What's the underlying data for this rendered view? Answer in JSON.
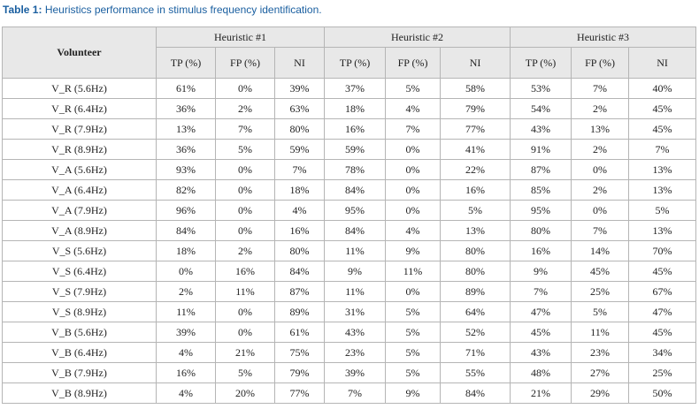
{
  "caption": {
    "label": "Table 1:",
    "text": "Heuristics performance in stimulus frequency identification."
  },
  "table": {
    "volunteer_header": "Volunteer",
    "groups": [
      "Heuristic #1",
      "Heuristic #2",
      "Heuristic #3"
    ],
    "subheaders": [
      "TP (%)",
      "FP (%)",
      "NI",
      "TP (%)",
      "FP (%)",
      "NI",
      "TP (%)",
      "FP (%)",
      "NI"
    ],
    "rows": [
      [
        "V_R (5.6Hz)",
        "61%",
        "0%",
        "39%",
        "37%",
        "5%",
        "58%",
        "53%",
        "7%",
        "40%"
      ],
      [
        "V_R (6.4Hz)",
        "36%",
        "2%",
        "63%",
        "18%",
        "4%",
        "79%",
        "54%",
        "2%",
        "45%"
      ],
      [
        "V_R (7.9Hz)",
        "13%",
        "7%",
        "80%",
        "16%",
        "7%",
        "77%",
        "43%",
        "13%",
        "45%"
      ],
      [
        "V_R (8.9Hz)",
        "36%",
        "5%",
        "59%",
        "59%",
        "0%",
        "41%",
        "91%",
        "2%",
        "7%"
      ],
      [
        "V_A (5.6Hz)",
        "93%",
        "0%",
        "7%",
        "78%",
        "0%",
        "22%",
        "87%",
        "0%",
        "13%"
      ],
      [
        "V_A (6.4Hz)",
        "82%",
        "0%",
        "18%",
        "84%",
        "0%",
        "16%",
        "85%",
        "2%",
        "13%"
      ],
      [
        "V_A (7.9Hz)",
        "96%",
        "0%",
        "4%",
        "95%",
        "0%",
        "5%",
        "95%",
        "0%",
        "5%"
      ],
      [
        "V_A (8.9Hz)",
        "84%",
        "0%",
        "16%",
        "84%",
        "4%",
        "13%",
        "80%",
        "7%",
        "13%"
      ],
      [
        "V_S (5.6Hz)",
        "18%",
        "2%",
        "80%",
        "11%",
        "9%",
        "80%",
        "16%",
        "14%",
        "70%"
      ],
      [
        "V_S (6.4Hz)",
        "0%",
        "16%",
        "84%",
        "9%",
        "11%",
        "80%",
        "9%",
        "45%",
        "45%"
      ],
      [
        "V_S (7.9Hz)",
        "2%",
        "11%",
        "87%",
        "11%",
        "0%",
        "89%",
        "7%",
        "25%",
        "67%"
      ],
      [
        "V_S (8.9Hz)",
        "11%",
        "0%",
        "89%",
        "31%",
        "5%",
        "64%",
        "47%",
        "5%",
        "47%"
      ],
      [
        "V_B (5.6Hz)",
        "39%",
        "0%",
        "61%",
        "43%",
        "5%",
        "52%",
        "45%",
        "11%",
        "45%"
      ],
      [
        "V_B (6.4Hz)",
        "4%",
        "21%",
        "75%",
        "23%",
        "5%",
        "71%",
        "43%",
        "23%",
        "34%"
      ],
      [
        "V_B (7.9Hz)",
        "16%",
        "5%",
        "79%",
        "39%",
        "5%",
        "55%",
        "48%",
        "27%",
        "25%"
      ],
      [
        "V_B (8.9Hz)",
        "4%",
        "20%",
        "77%",
        "7%",
        "9%",
        "84%",
        "21%",
        "29%",
        "50%"
      ]
    ]
  }
}
